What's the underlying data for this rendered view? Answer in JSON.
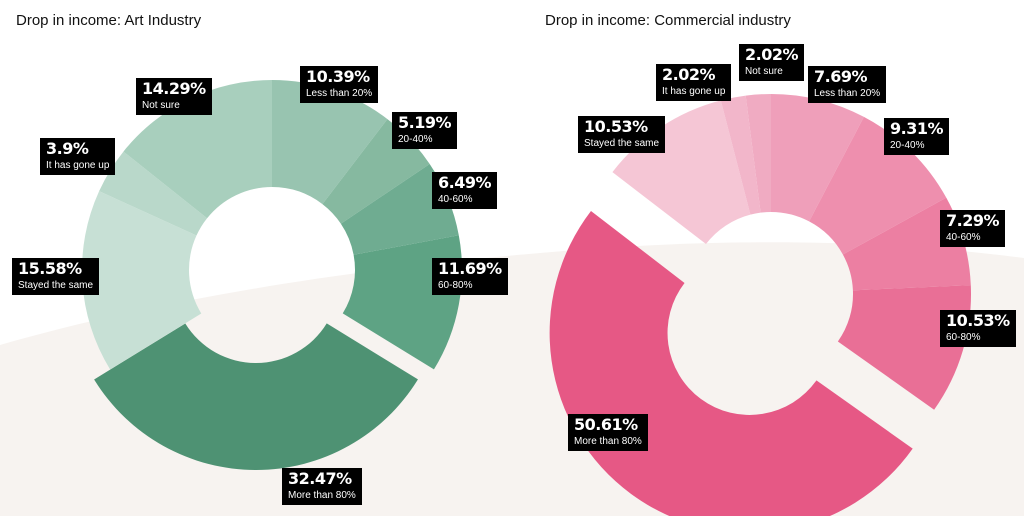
{
  "chart_data": [
    {
      "type": "pie",
      "title": "Drop in income: Art Industry",
      "slices": [
        {
          "label": "Less than 20%",
          "value": 10.39,
          "display": "10.39%",
          "color": "#98c4b0"
        },
        {
          "label": "20-40%",
          "value": 5.19,
          "display": "5.19%",
          "color": "#86b9a0"
        },
        {
          "label": "40-60%",
          "value": 6.49,
          "display": "6.49%",
          "color": "#6fac91"
        },
        {
          "label": "60-80%",
          "value": 11.69,
          "display": "11.69%",
          "color": "#5ea384"
        },
        {
          "label": "More than 80%",
          "value": 32.47,
          "display": "32.47%",
          "color": "#4e9273"
        },
        {
          "label": "Stayed the same",
          "value": 15.58,
          "display": "15.58%",
          "color": "#c7e0d5"
        },
        {
          "label": "It has gone up",
          "value": 3.9,
          "display": "3.9%",
          "color": "#b9d8ca"
        },
        {
          "label": "Not sure",
          "value": 14.29,
          "display": "14.29%",
          "color": "#a8cfbd"
        }
      ]
    },
    {
      "type": "pie",
      "title": "Drop in income: Commercial industry",
      "slices": [
        {
          "label": "Less than 20%",
          "value": 7.69,
          "display": "7.69%",
          "color": "#ef9fba"
        },
        {
          "label": "20-40%",
          "value": 9.31,
          "display": "9.31%",
          "color": "#ee8fae"
        },
        {
          "label": "40-60%",
          "value": 7.29,
          "display": "7.29%",
          "color": "#ec7fa2"
        },
        {
          "label": "60-80%",
          "value": 10.53,
          "display": "10.53%",
          "color": "#e96f96"
        },
        {
          "label": "More than 80%",
          "value": 50.61,
          "display": "50.61%",
          "color": "#e65885"
        },
        {
          "label": "Stayed the same",
          "value": 10.53,
          "display": "10.53%",
          "color": "#f5c6d5"
        },
        {
          "label": "It has gone up",
          "value": 2.02,
          "display": "2.02%",
          "color": "#f2b6ca"
        },
        {
          "label": "Not sure",
          "value": 2.02,
          "display": "2.02%",
          "color": "#f0abc2"
        }
      ]
    }
  ]
}
